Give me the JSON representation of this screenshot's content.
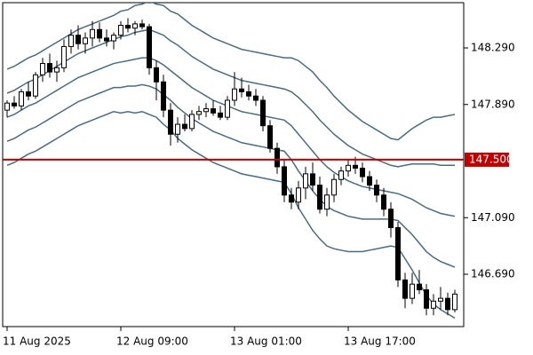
{
  "chart_data": {
    "type": "candlestick",
    "categories": [
      "11 Aug 2025",
      null,
      null,
      null,
      null,
      null,
      null,
      null,
      null,
      null,
      null,
      null,
      null,
      null,
      null,
      null,
      "12 Aug 09:00",
      null,
      null,
      null,
      null,
      null,
      null,
      null,
      null,
      null,
      null,
      null,
      null,
      null,
      null,
      null,
      "13 Aug 01:00",
      null,
      null,
      null,
      null,
      null,
      null,
      null,
      null,
      null,
      null,
      null,
      null,
      null,
      null,
      null,
      "13 Aug 17:00",
      null,
      null,
      null,
      null,
      null,
      null,
      null,
      null,
      null,
      null,
      null,
      null,
      null,
      null,
      null
    ],
    "open": [
      147.85,
      147.9,
      147.88,
      147.98,
      147.95,
      148.1,
      148.18,
      148.12,
      148.15,
      148.3,
      148.38,
      148.32,
      148.36,
      148.42,
      148.36,
      148.34,
      148.38,
      148.45,
      148.43,
      148.46,
      148.44,
      148.15,
      148.05,
      147.85,
      147.68,
      147.75,
      147.72,
      147.82,
      147.84,
      147.86,
      147.83,
      147.8,
      147.92,
      148.0,
      147.98,
      147.95,
      147.92,
      147.74,
      147.58,
      147.45,
      147.25,
      147.2,
      147.3,
      147.4,
      147.32,
      147.15,
      147.25,
      147.36,
      147.42,
      147.46,
      147.44,
      147.38,
      147.32,
      147.25,
      147.15,
      147.02,
      146.65,
      146.52,
      146.62,
      146.58,
      146.45,
      146.5,
      146.52,
      146.44
    ],
    "high": [
      147.92,
      147.95,
      148.0,
      148.05,
      148.12,
      148.22,
      148.25,
      148.2,
      148.35,
      148.42,
      148.45,
      148.4,
      148.48,
      148.47,
      148.42,
      148.4,
      148.48,
      148.5,
      148.48,
      148.49,
      148.46,
      148.2,
      148.1,
      147.9,
      147.8,
      147.82,
      147.85,
      147.88,
      147.9,
      147.92,
      147.88,
      147.95,
      148.12,
      148.08,
      148.03,
      148.0,
      147.95,
      147.78,
      147.62,
      147.5,
      147.3,
      147.35,
      147.45,
      147.48,
      147.38,
      147.3,
      147.4,
      147.45,
      147.5,
      147.52,
      147.48,
      147.42,
      147.36,
      147.3,
      147.2,
      147.06,
      146.7,
      146.7,
      146.72,
      146.62,
      146.55,
      146.6,
      146.56,
      146.58
    ],
    "low": [
      147.8,
      147.86,
      147.85,
      147.92,
      147.93,
      148.05,
      148.08,
      148.05,
      148.12,
      148.25,
      148.28,
      148.25,
      148.3,
      148.33,
      148.3,
      148.28,
      148.35,
      148.4,
      148.38,
      148.42,
      148.1,
      147.92,
      147.8,
      147.6,
      147.62,
      147.7,
      147.7,
      147.78,
      147.8,
      147.81,
      147.78,
      147.78,
      147.88,
      147.94,
      147.92,
      147.88,
      147.7,
      147.55,
      147.4,
      147.2,
      147.15,
      147.15,
      147.22,
      147.28,
      147.12,
      147.1,
      147.2,
      147.32,
      147.38,
      147.4,
      147.34,
      147.28,
      147.2,
      147.1,
      146.95,
      146.6,
      146.45,
      146.48,
      146.55,
      146.4,
      146.4,
      146.44,
      146.4,
      146.42
    ],
    "close": [
      147.9,
      147.88,
      147.98,
      147.95,
      148.1,
      148.18,
      148.12,
      148.15,
      148.3,
      148.38,
      148.32,
      148.36,
      148.42,
      148.36,
      148.34,
      148.38,
      148.45,
      148.43,
      148.46,
      148.44,
      148.15,
      148.05,
      147.85,
      147.68,
      147.75,
      147.72,
      147.82,
      147.84,
      147.86,
      147.83,
      147.8,
      147.92,
      148.0,
      147.98,
      147.95,
      147.92,
      147.74,
      147.58,
      147.45,
      147.25,
      147.2,
      147.3,
      147.4,
      147.32,
      147.15,
      147.25,
      147.36,
      147.42,
      147.46,
      147.44,
      147.38,
      147.32,
      147.25,
      147.15,
      147.02,
      146.65,
      146.52,
      146.62,
      146.58,
      146.45,
      146.5,
      146.52,
      146.44,
      146.55
    ],
    "up_color": "#ffffff",
    "down_color": "#000000",
    "wick_color": "#000000",
    "bands": [
      {
        "color": "#4a6b82",
        "values": [
          148.14,
          148.16,
          148.19,
          148.22,
          148.24,
          148.27,
          148.3,
          148.33,
          148.36,
          148.39,
          148.42,
          148.44,
          148.46,
          148.48,
          148.5,
          148.52,
          148.55,
          148.56,
          148.59,
          148.6,
          148.62,
          148.6,
          148.59,
          148.55,
          148.53,
          148.49,
          148.45,
          148.42,
          148.39,
          148.36,
          148.34,
          148.32,
          148.3,
          148.28,
          148.27,
          148.26,
          148.25,
          148.24,
          148.23,
          148.22,
          148.22,
          148.2,
          148.16,
          148.12,
          148.06,
          148.01,
          147.95,
          147.9,
          147.85,
          147.81,
          147.77,
          147.74,
          147.71,
          147.68,
          147.65,
          147.64,
          147.68,
          147.72,
          147.75,
          147.78,
          147.8,
          147.8,
          147.81,
          147.82
        ]
      },
      {
        "color": "#4a6b82",
        "values": [
          147.97,
          147.99,
          148.02,
          148.05,
          148.07,
          148.1,
          148.13,
          148.16,
          148.19,
          148.22,
          148.25,
          148.27,
          148.29,
          148.31,
          148.33,
          148.35,
          148.37,
          148.38,
          148.4,
          148.41,
          148.42,
          148.4,
          148.38,
          148.34,
          148.31,
          148.27,
          148.23,
          148.2,
          148.17,
          148.14,
          148.12,
          148.1,
          148.08,
          148.06,
          148.05,
          148.04,
          148.03,
          148.02,
          148.01,
          148.0,
          147.98,
          147.94,
          147.89,
          147.84,
          147.78,
          147.73,
          147.68,
          147.64,
          147.6,
          147.57,
          147.54,
          147.52,
          147.5,
          147.48,
          147.46,
          147.45,
          147.46,
          147.47,
          147.47,
          147.47,
          147.47,
          147.46,
          147.46,
          147.46
        ]
      },
      {
        "color": "#4a6b82",
        "values": [
          147.8,
          147.82,
          147.85,
          147.88,
          147.9,
          147.93,
          147.96,
          147.99,
          148.02,
          148.05,
          148.08,
          148.1,
          148.12,
          148.14,
          148.16,
          148.18,
          148.19,
          148.2,
          148.21,
          148.22,
          148.22,
          148.2,
          148.17,
          148.13,
          148.09,
          148.05,
          148.01,
          147.98,
          147.95,
          147.92,
          147.9,
          147.88,
          147.86,
          147.84,
          147.83,
          147.82,
          147.81,
          147.8,
          147.79,
          147.78,
          147.74,
          147.68,
          147.62,
          147.56,
          147.5,
          147.45,
          147.41,
          147.38,
          147.35,
          147.33,
          147.31,
          147.3,
          147.29,
          147.28,
          147.27,
          147.26,
          147.24,
          147.22,
          147.19,
          147.16,
          147.14,
          147.12,
          147.11,
          147.1
        ]
      },
      {
        "color": "#4a6b82",
        "values": [
          147.63,
          147.65,
          147.68,
          147.71,
          147.73,
          147.76,
          147.79,
          147.82,
          147.85,
          147.88,
          147.91,
          147.93,
          147.95,
          147.97,
          147.99,
          148.01,
          148.01,
          148.02,
          148.02,
          148.03,
          148.02,
          148.0,
          147.96,
          147.92,
          147.87,
          147.83,
          147.79,
          147.76,
          147.73,
          147.7,
          147.68,
          147.66,
          147.64,
          147.62,
          147.61,
          147.6,
          147.59,
          147.58,
          147.57,
          147.56,
          147.5,
          147.42,
          147.35,
          147.28,
          147.22,
          147.17,
          147.14,
          147.12,
          147.1,
          147.09,
          147.08,
          147.08,
          147.08,
          147.08,
          147.08,
          147.07,
          147.02,
          146.97,
          146.91,
          146.85,
          146.81,
          146.78,
          146.76,
          146.74
        ]
      },
      {
        "color": "#4a6b82",
        "values": [
          147.46,
          147.48,
          147.51,
          147.54,
          147.56,
          147.59,
          147.62,
          147.65,
          147.68,
          147.71,
          147.74,
          147.76,
          147.78,
          147.8,
          147.82,
          147.84,
          147.83,
          147.84,
          147.83,
          147.84,
          147.82,
          147.8,
          147.75,
          147.71,
          147.65,
          147.61,
          147.57,
          147.54,
          147.51,
          147.48,
          147.46,
          147.44,
          147.42,
          147.4,
          147.39,
          147.38,
          147.37,
          147.36,
          147.35,
          147.34,
          147.26,
          147.16,
          147.08,
          147.0,
          146.94,
          146.89,
          146.87,
          146.86,
          146.85,
          146.85,
          146.85,
          146.86,
          146.87,
          146.88,
          146.89,
          146.88,
          146.8,
          146.72,
          146.63,
          146.54,
          146.48,
          146.44,
          146.41,
          146.38
        ]
      }
    ],
    "hline": {
      "value": 147.5,
      "label": "147.500",
      "color": "#c00000"
    },
    "ylim": [
      146.32,
      148.61
    ],
    "yticks": [
      {
        "value": 148.29,
        "label": "148.290"
      },
      {
        "value": 147.89,
        "label": "147.890"
      },
      {
        "value": 147.09,
        "label": "147.090"
      },
      {
        "value": 146.69,
        "label": "146.690"
      }
    ]
  }
}
